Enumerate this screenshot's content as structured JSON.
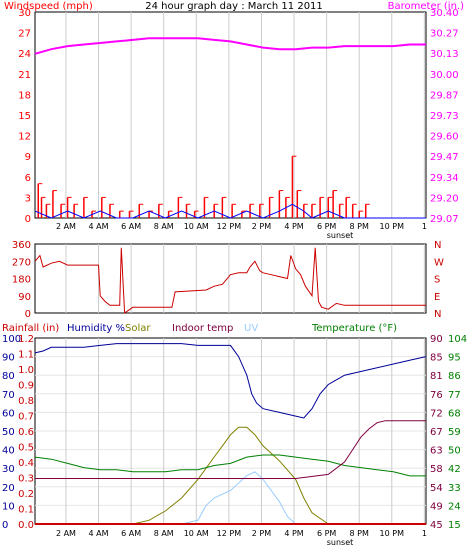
{
  "title": "24 hour graph day : March 11 2011",
  "colors": {
    "grid": "#cccccc",
    "frame": "#000000",
    "wind": "#ff0000",
    "gust": "#0000ff",
    "barometer": "#ff00ff",
    "direction": "#cc0000",
    "rainfall": "#cc0000",
    "humidity": "#000099",
    "solar": "#808000",
    "indoor": "#800040",
    "uv": "#99ccff",
    "temperature": "#008000"
  },
  "x_axis": {
    "labels": [
      "2 AM",
      "4 AM",
      "6 AM",
      "8 AM",
      "10 AM",
      "12 PM",
      "2 PM",
      "4 PM",
      "6 PM",
      "8 PM",
      "10 PM",
      "1"
    ],
    "sunset_label": "sunset"
  },
  "panel1": {
    "left_title": "Windspeed (mph)",
    "right_title": "Barometer (in.)",
    "left_ticks": [
      "30",
      "27",
      "24",
      "21",
      "18",
      "15",
      "12",
      "9",
      "6",
      "3",
      "0"
    ],
    "right_ticks": [
      "30.40",
      "30.27",
      "30.13",
      "30.00",
      "29.87",
      "29.73",
      "29.60",
      "29.47",
      "29.34",
      "29.20",
      "29.07"
    ]
  },
  "panel2": {
    "left_ticks": [
      "360",
      "270",
      "180",
      "90",
      "0"
    ],
    "right_ticks": [
      "N",
      "W",
      "S",
      "E",
      "N"
    ]
  },
  "panel3": {
    "legend": {
      "rainfall": "Rainfall (in)",
      "humidity": "Humidity %",
      "solar": "Solar",
      "indoor": "Indoor temp",
      "uv": "UV",
      "temperature": "Temperature (°F)"
    },
    "humidity_ticks": [
      "100",
      "90",
      "80",
      "70",
      "60",
      "50",
      "40",
      "30",
      "20",
      "10",
      "0"
    ],
    "rain_ticks": [
      "1.2",
      "1.1",
      "1.0",
      "0.9",
      "0.8",
      "0.7",
      "0.6",
      "0.5",
      "0.4",
      "0.3",
      "0.2",
      "0.1",
      "0.0"
    ],
    "indoor_ticks": [
      "90",
      "85",
      "81",
      "76",
      "72",
      "67",
      "63",
      "58",
      "54",
      "49",
      "45"
    ],
    "temp_ticks": [
      "104",
      "95",
      "86",
      "77",
      "68",
      "59",
      "50",
      "42",
      "33",
      "24",
      "15"
    ]
  },
  "chart_data": [
    {
      "type": "line",
      "title": "24 hour graph day : March 11 2011",
      "xlabel": "",
      "ylabel": "Windspeed (mph)",
      "y2label": "Barometer (in.)",
      "ylim": [
        0,
        30
      ],
      "y2lim": [
        29.07,
        30.4
      ],
      "series": [
        {
          "name": "Barometer (in.)",
          "axis": "right",
          "hours": [
            0,
            1,
            2,
            3,
            4,
            5,
            6,
            7,
            8,
            9,
            10,
            11,
            12,
            13,
            14,
            15,
            16,
            17,
            18,
            19,
            20,
            21,
            22,
            23,
            24
          ],
          "values": [
            30.13,
            30.16,
            30.18,
            30.19,
            30.2,
            30.21,
            30.22,
            30.23,
            30.23,
            30.23,
            30.23,
            30.22,
            30.21,
            30.19,
            30.17,
            30.16,
            30.16,
            30.17,
            30.17,
            30.18,
            30.18,
            30.18,
            30.18,
            30.19,
            30.19
          ]
        },
        {
          "name": "Windspeed (mph)",
          "axis": "left",
          "bar_hours": [
            0.2,
            0.4,
            0.7,
            1.1,
            1.6,
            2.0,
            2.4,
            3.0,
            3.5,
            4.1,
            4.6,
            5.2,
            5.8,
            6.4,
            7.0,
            7.6,
            8.2,
            8.8,
            9.3,
            9.8,
            10.4,
            11.0,
            11.5,
            12.1,
            12.7,
            13.2,
            13.8,
            14.4,
            15.0,
            15.4,
            15.8,
            16.1,
            16.5,
            17.0,
            17.5,
            18.0,
            18.3,
            18.7,
            19.1,
            19.5,
            19.9,
            20.3
          ],
          "bar_values": [
            5,
            3,
            2,
            4,
            2,
            3,
            2,
            3,
            1,
            3,
            2,
            1,
            1,
            2,
            1,
            2,
            1,
            3,
            2,
            1,
            3,
            2,
            3,
            2,
            1,
            2,
            2,
            3,
            4,
            3,
            9,
            4,
            2,
            2,
            3,
            3,
            4,
            2,
            3,
            2,
            1,
            2
          ]
        },
        {
          "name": "Gust",
          "axis": "left",
          "hours": [
            0,
            1,
            2,
            3,
            4,
            5,
            6,
            7,
            8,
            9,
            10,
            11,
            12,
            13,
            14,
            15,
            15.8,
            16.5,
            17,
            18,
            19,
            20,
            21,
            22,
            23,
            24
          ],
          "values": [
            1,
            0,
            1,
            0,
            1,
            0,
            0,
            1,
            0,
            1,
            0,
            1,
            0,
            1,
            0,
            1,
            2,
            1,
            0,
            1,
            0,
            0,
            0,
            0,
            0,
            0
          ]
        }
      ]
    },
    {
      "type": "line",
      "ylabel": "Wind direction",
      "ylim": [
        0,
        360
      ],
      "series": [
        {
          "name": "Wind direction",
          "hours": [
            0,
            0.3,
            0.5,
            1.0,
            1.5,
            2.0,
            2.5,
            3.0,
            3.5,
            3.9,
            4.0,
            4.3,
            4.6,
            5.2,
            5.3,
            5.5,
            6.0,
            7.0,
            8.0,
            8.4,
            8.6,
            9.5,
            10.5,
            11.0,
            11.5,
            12.0,
            12.5,
            13.0,
            13.2,
            13.5,
            13.8,
            14.0,
            14.5,
            15.0,
            15.5,
            15.7,
            16.0,
            16.3,
            16.6,
            17.0,
            17.2,
            17.4,
            17.6,
            18.0,
            18.5,
            19.0,
            20.0,
            21.0,
            22.0,
            23.0,
            24.0
          ],
          "values": [
            270,
            300,
            240,
            260,
            270,
            250,
            250,
            250,
            250,
            250,
            90,
            60,
            40,
            40,
            340,
            0,
            30,
            30,
            30,
            30,
            110,
            115,
            120,
            140,
            150,
            200,
            210,
            210,
            240,
            270,
            220,
            210,
            200,
            190,
            180,
            300,
            230,
            200,
            140,
            90,
            340,
            60,
            30,
            20,
            50,
            40,
            40,
            40,
            40,
            40,
            40
          ]
        }
      ]
    },
    {
      "type": "line",
      "ylabel": "Humidity %",
      "ylim": [
        0,
        100
      ],
      "series": [
        {
          "name": "Humidity %",
          "axis": "humidity",
          "hours": [
            0,
            0.5,
            1,
            2,
            3,
            4,
            5,
            6,
            7,
            8,
            9,
            10,
            11,
            12,
            12.5,
            13,
            13.3,
            13.6,
            14,
            15,
            16,
            16.5,
            17,
            17.5,
            18,
            19,
            20,
            21,
            22,
            23,
            24
          ],
          "values": [
            92,
            93,
            95,
            95,
            95,
            96,
            97,
            97,
            97,
            97,
            97,
            96,
            96,
            96,
            90,
            80,
            70,
            65,
            62,
            60,
            58,
            57,
            62,
            70,
            75,
            80,
            82,
            84,
            86,
            88,
            90
          ]
        },
        {
          "name": "Solar",
          "axis": "humidity",
          "hours": [
            0,
            6,
            7,
            8,
            9,
            10,
            10.5,
            11,
            11.5,
            12,
            12.5,
            13,
            13.5,
            14,
            15,
            16,
            16.5,
            17,
            18,
            24
          ],
          "values": [
            0,
            0,
            2,
            7,
            14,
            24,
            30,
            36,
            42,
            48,
            52,
            52,
            48,
            42,
            34,
            24,
            14,
            6,
            0,
            0
          ]
        },
        {
          "name": "UV",
          "axis": "humidity",
          "hours": [
            0,
            9,
            10,
            10.5,
            11,
            11.5,
            12,
            12.5,
            13,
            13.5,
            14,
            15,
            15.5,
            16,
            24
          ],
          "values": [
            0,
            0,
            2,
            10,
            14,
            16,
            18,
            22,
            26,
            28,
            24,
            12,
            4,
            0,
            0
          ]
        },
        {
          "name": "Indoor temp",
          "axis": "indoor",
          "hours": [
            0,
            2,
            4,
            6,
            8,
            10,
            12,
            14,
            16,
            18,
            19,
            19.5,
            20,
            20.5,
            21,
            21.5,
            22,
            23,
            24
          ],
          "values": [
            56,
            56,
            56,
            56,
            56,
            56,
            56,
            56,
            56,
            57,
            60,
            63,
            66,
            68,
            69.5,
            70,
            70,
            70,
            70
          ]
        },
        {
          "name": "Temperature (°F)",
          "axis": "temperature",
          "hours": [
            0,
            1,
            2,
            3,
            4,
            5,
            6,
            7,
            8,
            9,
            10,
            11,
            12,
            13,
            14,
            15,
            16,
            17,
            18,
            19,
            20,
            21,
            22,
            23,
            24
          ],
          "values": [
            47,
            46,
            44,
            42,
            41,
            41,
            40,
            40,
            40,
            41,
            41,
            43,
            44,
            47,
            48,
            48,
            47,
            46,
            45,
            43,
            42,
            41,
            40,
            38,
            38
          ]
        },
        {
          "name": "Rainfall (in)",
          "axis": "rain",
          "hours": [
            0,
            24
          ],
          "values": [
            0,
            0
          ]
        }
      ]
    }
  ]
}
